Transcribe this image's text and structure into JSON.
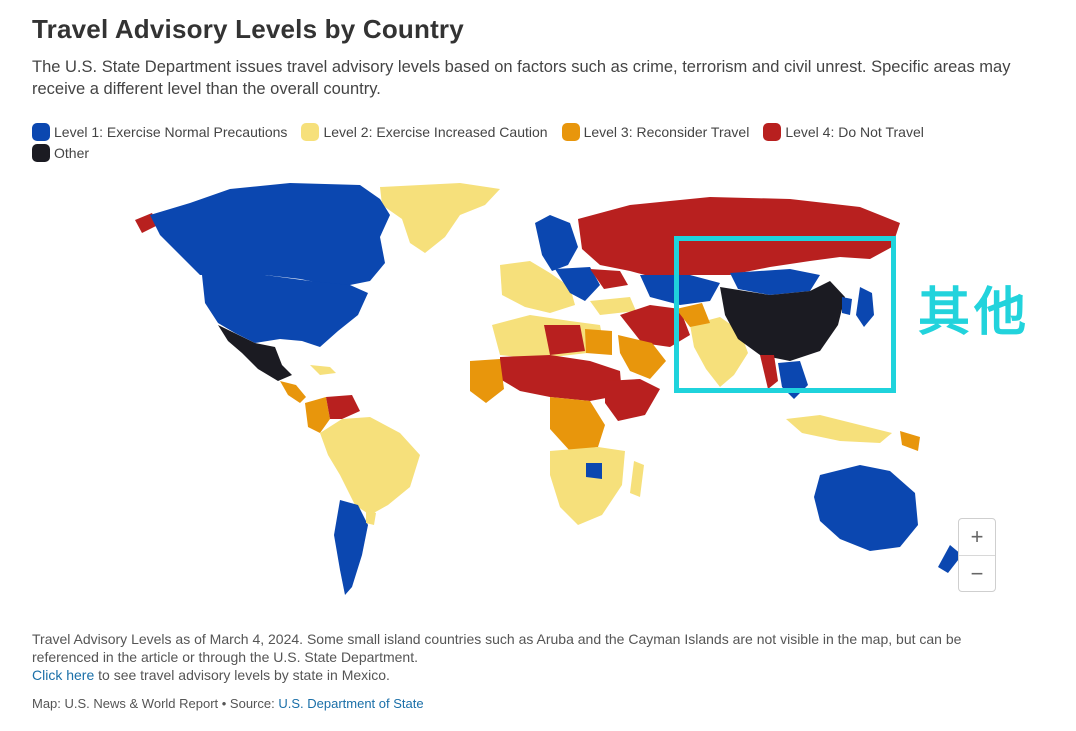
{
  "header": {
    "title": "Travel Advisory Levels by Country",
    "subtitle": "The U.S. State Department issues travel advisory levels based on factors such as crime, terrorism and civil unrest. Specific areas may receive a different level than the overall country."
  },
  "legend": {
    "items": [
      {
        "label": "Level 1: Exercise Normal Precautions",
        "color": "#0b47b0"
      },
      {
        "label": "Level 2: Exercise Increased Caution",
        "color": "#f6e07b"
      },
      {
        "label": "Level 3: Reconsider Travel",
        "color": "#e8960c"
      },
      {
        "label": "Level 4: Do Not Travel",
        "color": "#b8201f"
      },
      {
        "label": "Other",
        "color": "#1b1b22"
      }
    ]
  },
  "map": {
    "colors": {
      "level1": "#0b47b0",
      "level2": "#f6e07b",
      "level3": "#e8960c",
      "level4": "#b8201f",
      "other": "#1b1b22"
    }
  },
  "zoom": {
    "in_label": "+",
    "out_label": "−"
  },
  "annotation": {
    "label": "其他",
    "color": "#1fd3dc"
  },
  "footnote": {
    "text": "Travel Advisory Levels as of March 4, 2024. Some small island countries such as Aruba and the Cayman Islands are not visible in the map, but can be referenced in the article or through the U.S. State Department.",
    "link_text": "Click here",
    "link_suffix": " to see travel advisory levels by state in Mexico."
  },
  "credit": {
    "prefix": "Map: U.S. News & World Report • Source: ",
    "source_link": "U.S. Department of State"
  }
}
